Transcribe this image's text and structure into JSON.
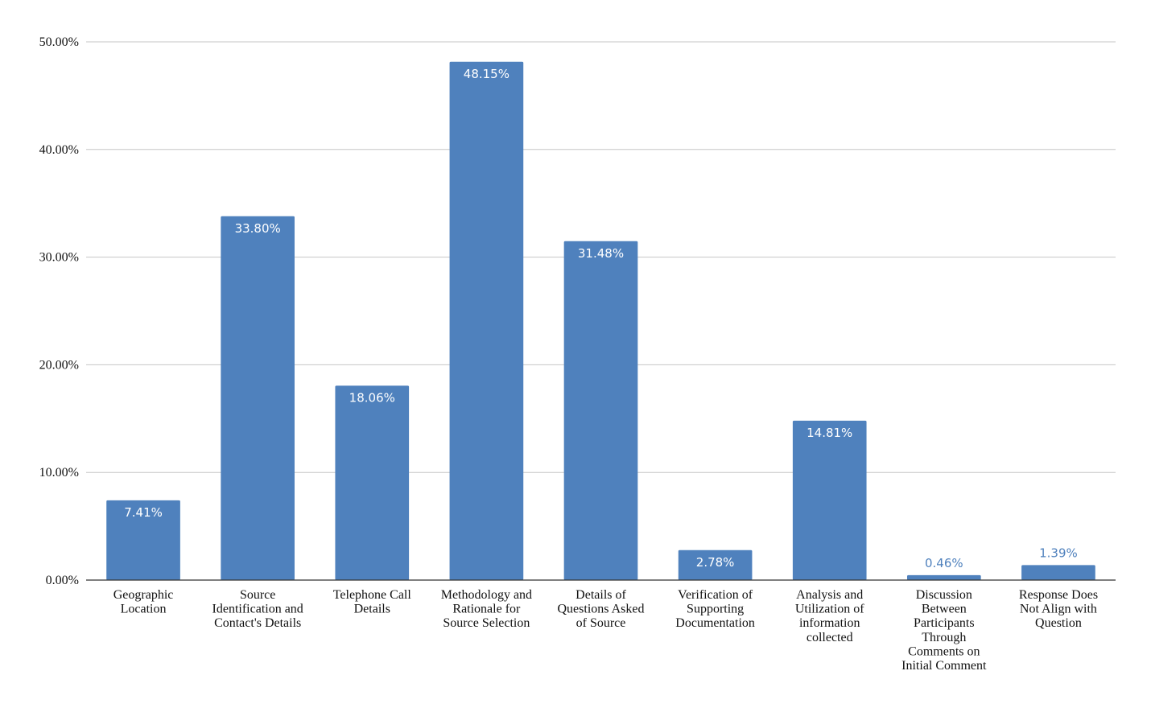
{
  "chart_data": {
    "type": "bar",
    "title": "",
    "xlabel": "",
    "ylabel": "",
    "ylim": [
      0,
      50
    ],
    "yticks": [
      "0.00%",
      "10.00%",
      "20.00%",
      "30.00%",
      "40.00%",
      "50.00%"
    ],
    "ytick_values": [
      0,
      10,
      20,
      30,
      40,
      50
    ],
    "grid": true,
    "legend": "none",
    "categories": [
      [
        "Geographic",
        "Location"
      ],
      [
        "Source",
        "Identification and",
        "Contact's Details"
      ],
      [
        "Telephone Call",
        "Details"
      ],
      [
        "Methodology and",
        "Rationale for",
        "Source Selection"
      ],
      [
        "Details of",
        "Questions Asked",
        "of Source"
      ],
      [
        "Verification of",
        "Supporting",
        "Documentation"
      ],
      [
        "Analysis and",
        "Utilization of",
        "information",
        "collected"
      ],
      [
        "Discussion",
        "Between",
        "Participants",
        "Through",
        "Comments on",
        "Initial Comment"
      ],
      [
        "Response Does",
        "Not Align with",
        "Question"
      ]
    ],
    "values": [
      7.41,
      33.8,
      18.06,
      48.15,
      31.48,
      2.78,
      14.81,
      0.46,
      1.39
    ],
    "data_labels": [
      "7.41%",
      "33.80%",
      "18.06%",
      "48.15%",
      "31.48%",
      "2.78%",
      "14.81%",
      "0.46%",
      "1.39%"
    ],
    "bar_color": "#4f81bd",
    "label_inside_color": "#ffffff",
    "label_outside_color": "#4f81bd"
  }
}
